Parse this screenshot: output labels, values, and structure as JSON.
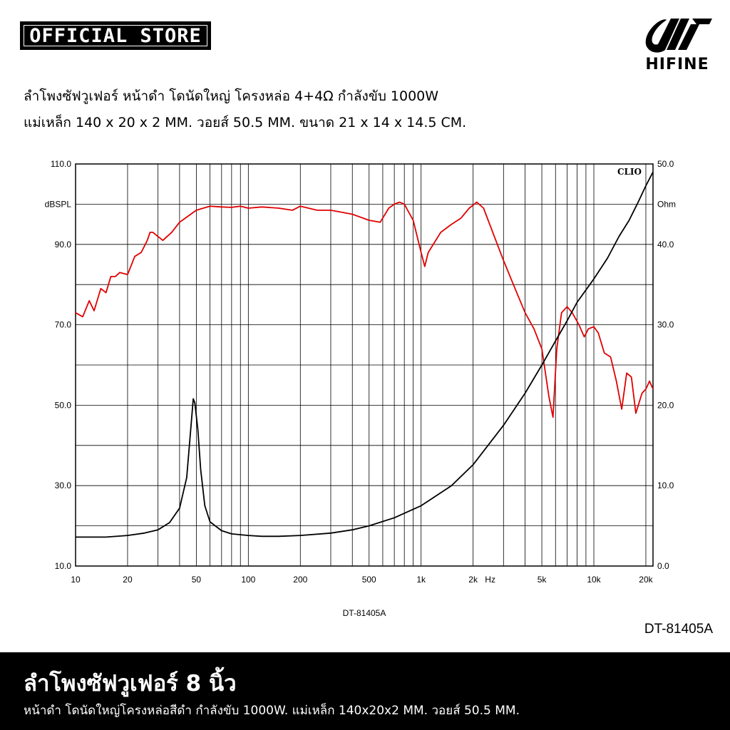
{
  "header": {
    "badge_text": "OFFICIAL STORE",
    "logo_text": "HIFINE"
  },
  "description": {
    "line1": "ลำโพงซัฟวูเฟอร์ หน้าดำ โดนัดใหญ่ โครงหล่อ 4+4Ω กำลังขับ 1000W",
    "line2": "แม่เหล็ก 140 x 20 x 2 MM.  วอยส์ 50.5 MM. ขนาด 21 x 14 x 14.5 CM."
  },
  "model_label": "DT-81405A",
  "footer": {
    "title": "ลำโพงซัฟวูเฟอร์ 8 นิ้ว",
    "subtitle": "หน้าดำ โดนัดใหญ่โครงหล่อสีดำ กำลังขับ 1000W. แม่เหล็ก 140x20x2 MM. วอยส์ 50.5 MM."
  },
  "chart_data": {
    "type": "line",
    "brand_label": "CLIO",
    "caption": "DT-81405A",
    "x_scale": "log",
    "xlim": [
      10,
      22000
    ],
    "x_ticks": [
      {
        "value": 10,
        "label": "10"
      },
      {
        "value": 20,
        "label": "20"
      },
      {
        "value": 50,
        "label": "50"
      },
      {
        "value": 100,
        "label": "100"
      },
      {
        "value": 200,
        "label": "200"
      },
      {
        "value": 500,
        "label": "500"
      },
      {
        "value": 1000,
        "label": "1k"
      },
      {
        "value": 2000,
        "label": "2k"
      },
      {
        "value": 5000,
        "label": "5k"
      },
      {
        "value": 10000,
        "label": "10k"
      },
      {
        "value": 20000,
        "label": "20k"
      }
    ],
    "x_unit_label": "Hz",
    "y_left": {
      "unit": "dBSPL",
      "lim": [
        10,
        110
      ],
      "ticks": [
        {
          "value": 110,
          "label": "110.0"
        },
        {
          "value": 90,
          "label": "90.0"
        },
        {
          "value": 70,
          "label": "70.0"
        },
        {
          "value": 50,
          "label": "50.0"
        },
        {
          "value": 30,
          "label": "30.0"
        },
        {
          "value": 10,
          "label": "10.0"
        }
      ]
    },
    "y_right": {
      "unit": "Ohm",
      "lim": [
        0,
        50
      ],
      "ticks": [
        {
          "value": 50,
          "label": "50.0"
        },
        {
          "value": 40,
          "label": "40.0"
        },
        {
          "value": 30,
          "label": "30.0"
        },
        {
          "value": 20,
          "label": "20.0"
        },
        {
          "value": 10,
          "label": "10.0"
        },
        {
          "value": 0,
          "label": "0.0"
        }
      ]
    },
    "grid": true,
    "series": [
      {
        "axis": "left",
        "color": "#e00000",
        "points": [
          [
            10,
            73
          ],
          [
            11,
            72
          ],
          [
            12,
            76
          ],
          [
            12.8,
            73.5
          ],
          [
            14,
            79
          ],
          [
            15,
            78
          ],
          [
            16,
            82
          ],
          [
            17,
            82
          ],
          [
            18,
            83
          ],
          [
            20,
            82.5
          ],
          [
            22,
            87
          ],
          [
            24,
            88
          ],
          [
            26,
            91
          ],
          [
            27,
            93
          ],
          [
            28,
            93
          ],
          [
            32,
            91
          ],
          [
            36,
            93
          ],
          [
            40,
            95.5
          ],
          [
            50,
            98.5
          ],
          [
            60,
            99.5
          ],
          [
            70,
            99.3
          ],
          [
            80,
            99.2
          ],
          [
            90,
            99.5
          ],
          [
            100,
            99
          ],
          [
            120,
            99.3
          ],
          [
            150,
            99
          ],
          [
            180,
            98.5
          ],
          [
            200,
            99.5
          ],
          [
            250,
            98.5
          ],
          [
            300,
            98.5
          ],
          [
            400,
            97.5
          ],
          [
            500,
            96
          ],
          [
            580,
            95.5
          ],
          [
            650,
            99
          ],
          [
            700,
            100
          ],
          [
            750,
            100.5
          ],
          [
            800,
            100
          ],
          [
            900,
            96
          ],
          [
            1000,
            88
          ],
          [
            1050,
            84.5
          ],
          [
            1100,
            88
          ],
          [
            1300,
            93
          ],
          [
            1500,
            95
          ],
          [
            1700,
            96.5
          ],
          [
            1900,
            99
          ],
          [
            2100,
            100.5
          ],
          [
            2300,
            99
          ],
          [
            2600,
            93
          ],
          [
            3000,
            86
          ],
          [
            3500,
            79
          ],
          [
            4000,
            73
          ],
          [
            4500,
            69
          ],
          [
            5000,
            64
          ],
          [
            5500,
            52
          ],
          [
            5800,
            47
          ],
          [
            6100,
            64
          ],
          [
            6500,
            73
          ],
          [
            7000,
            74.5
          ],
          [
            7500,
            73
          ],
          [
            8200,
            70
          ],
          [
            8800,
            67
          ],
          [
            9300,
            69
          ],
          [
            10000,
            69.5
          ],
          [
            10600,
            68
          ],
          [
            11500,
            63
          ],
          [
            12500,
            62
          ],
          [
            13500,
            56
          ],
          [
            14500,
            49
          ],
          [
            15500,
            58
          ],
          [
            16500,
            57
          ],
          [
            17500,
            48
          ],
          [
            19000,
            53
          ],
          [
            20000,
            54
          ],
          [
            21000,
            56
          ],
          [
            22000,
            54
          ]
        ]
      },
      {
        "axis": "right",
        "color": "#000000",
        "points": [
          [
            10,
            3.6
          ],
          [
            15,
            3.6
          ],
          [
            20,
            3.8
          ],
          [
            25,
            4.1
          ],
          [
            30,
            4.5
          ],
          [
            35,
            5.4
          ],
          [
            40,
            7.2
          ],
          [
            44,
            11
          ],
          [
            46,
            16
          ],
          [
            48,
            20.8
          ],
          [
            49,
            20.3
          ],
          [
            51,
            17
          ],
          [
            53,
            12
          ],
          [
            56,
            7.5
          ],
          [
            60,
            5.5
          ],
          [
            70,
            4.4
          ],
          [
            80,
            4.0
          ],
          [
            100,
            3.8
          ],
          [
            120,
            3.7
          ],
          [
            150,
            3.7
          ],
          [
            200,
            3.8
          ],
          [
            300,
            4.1
          ],
          [
            400,
            4.5
          ],
          [
            500,
            5.0
          ],
          [
            700,
            6.0
          ],
          [
            1000,
            7.5
          ],
          [
            1500,
            10.0
          ],
          [
            2000,
            12.6
          ],
          [
            3000,
            17.5
          ],
          [
            4000,
            21.5
          ],
          [
            5000,
            25.0
          ],
          [
            6000,
            28.0
          ],
          [
            7000,
            30.5
          ],
          [
            8000,
            32.8
          ],
          [
            10000,
            35.7
          ],
          [
            12000,
            38.3
          ],
          [
            14000,
            41.0
          ],
          [
            16000,
            43.0
          ],
          [
            18000,
            45.2
          ],
          [
            20000,
            47.3
          ],
          [
            22000,
            49.0
          ]
        ]
      }
    ]
  }
}
